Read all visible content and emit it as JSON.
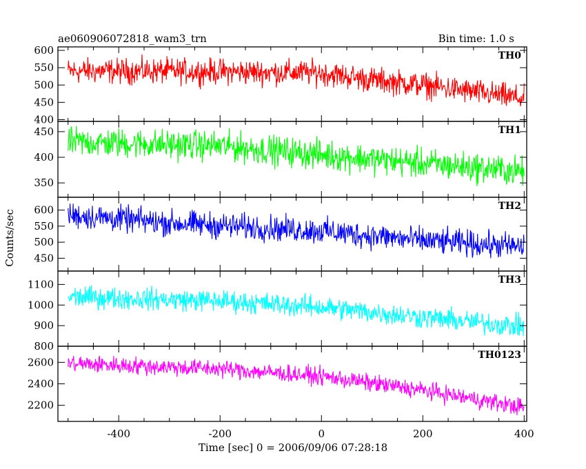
{
  "chart_data": {
    "type": "line",
    "title": "ae060906072818_wam3_trn",
    "subtitle": "Bin time: 1.0 s",
    "xlabel": "Time [sec] 0 = 2006/09/06 07:28:18",
    "ylabel": "Counts/sec",
    "xlim": [
      -520,
      405
    ],
    "xticks": [
      -400,
      -200,
      0,
      200,
      400
    ],
    "x_range": [
      -500,
      400
    ],
    "panels": [
      {
        "name": "TH0",
        "color": "#ff0000",
        "ylim": [
          395,
          610
        ],
        "yticks": [
          400,
          450,
          500,
          550,
          600
        ],
        "trend": [
          [
            -500,
            540
          ],
          [
            -300,
            540
          ],
          [
            0,
            535
          ],
          [
            100,
            515
          ],
          [
            200,
            500
          ],
          [
            400,
            460
          ]
        ],
        "noise_amp": 38
      },
      {
        "name": "TH1",
        "color": "#00ff00",
        "ylim": [
          322,
          470
        ],
        "yticks": [
          350,
          400,
          450
        ],
        "trend": [
          [
            -500,
            430
          ],
          [
            -200,
            422
          ],
          [
            0,
            405
          ],
          [
            200,
            388
          ],
          [
            400,
            372
          ]
        ],
        "noise_amp": 30
      },
      {
        "name": "TH2",
        "color": "#0000ff",
        "ylim": [
          410,
          640
        ],
        "yticks": [
          450,
          500,
          550,
          600
        ],
        "trend": [
          [
            -500,
            585
          ],
          [
            -300,
            560
          ],
          [
            0,
            535
          ],
          [
            200,
            505
          ],
          [
            400,
            485
          ]
        ],
        "noise_amp": 42
      },
      {
        "name": "TH3",
        "color": "#00ffff",
        "ylim": [
          800,
          1165
        ],
        "yticks": [
          800,
          900,
          1000,
          1100
        ],
        "trend": [
          [
            -500,
            1040
          ],
          [
            -200,
            1020
          ],
          [
            0,
            990
          ],
          [
            200,
            940
          ],
          [
            400,
            895
          ]
        ],
        "noise_amp": 55
      },
      {
        "name": "TH0123",
        "color": "#ff00ff",
        "ylim": [
          2050,
          2750
        ],
        "yticks": [
          2200,
          2400,
          2600
        ],
        "trend": [
          [
            -500,
            2590
          ],
          [
            -200,
            2540
          ],
          [
            0,
            2470
          ],
          [
            200,
            2340
          ],
          [
            400,
            2180
          ]
        ],
        "noise_amp": 85
      }
    ]
  }
}
